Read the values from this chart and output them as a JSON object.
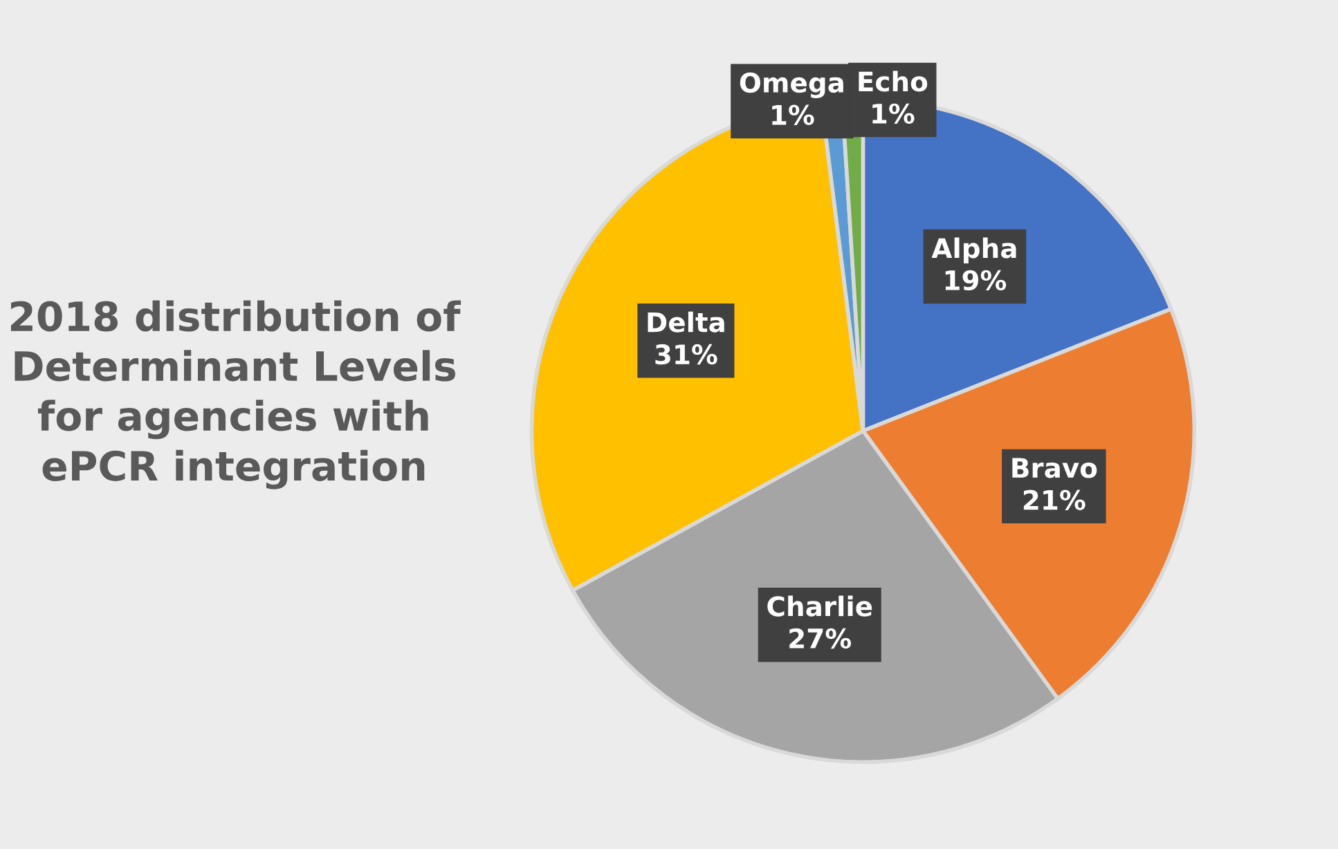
{
  "chart_data": {
    "type": "pie",
    "title": "2018 distribution of\nDeterminant Levels\nfor agencies with\nePCR integration",
    "categories": [
      "Alpha",
      "Bravo",
      "Charlie",
      "Delta",
      "Omega",
      "Echo"
    ],
    "values": [
      19,
      21,
      27,
      31,
      1,
      1
    ],
    "value_labels": [
      "19%",
      "21%",
      "27%",
      "31%",
      "1%",
      "1%"
    ],
    "colors": [
      "#4472c4",
      "#ed7d31",
      "#a5a5a5",
      "#ffc000",
      "#5b9bd5",
      "#70ad47"
    ],
    "legend": false
  }
}
